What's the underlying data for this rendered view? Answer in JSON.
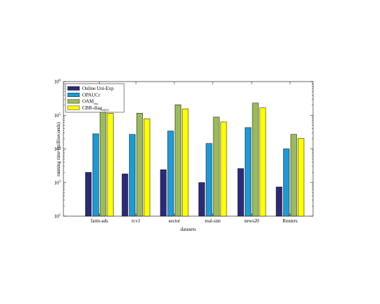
{
  "chart_data": {
    "type": "bar",
    "xlabel": "datasets",
    "ylabel": "running time (milliseconds)",
    "y_scale": "log",
    "ylim": [
      100,
      1000000
    ],
    "y_ticks": [
      {
        "value": 100,
        "base": "10",
        "exp": "2"
      },
      {
        "value": 1000,
        "base": "10",
        "exp": "3"
      },
      {
        "value": 10000,
        "base": "10",
        "exp": "4"
      },
      {
        "value": 100000,
        "base": "10",
        "exp": "5"
      },
      {
        "value": 1000000,
        "base": "10",
        "exp": "6"
      }
    ],
    "categories": [
      "farm-ads",
      "rcv1",
      "sector",
      "real-sim",
      "news20",
      "Reuters"
    ],
    "series": [
      {
        "name": "Online Uni-Exp",
        "color": "#2b2a78",
        "values": [
          2000,
          1800,
          2400,
          1000,
          2600,
          740
        ]
      },
      {
        "name": "OPAUCr",
        "color": "#1c9ad6",
        "values": [
          28000,
          27000,
          34000,
          14500,
          43000,
          10000
        ]
      },
      {
        "name": "OAM",
        "name_sub": "seq",
        "color": "#9bbb59",
        "values": [
          150000,
          115000,
          205000,
          88000,
          230000,
          27000
        ]
      },
      {
        "name": "CBR-diag",
        "name_sub": "FIFO",
        "color": "#ffff00",
        "values": [
          115000,
          78000,
          155000,
          63000,
          165000,
          20500
        ]
      }
    ],
    "legend_position": "top-left",
    "grid": false
  }
}
